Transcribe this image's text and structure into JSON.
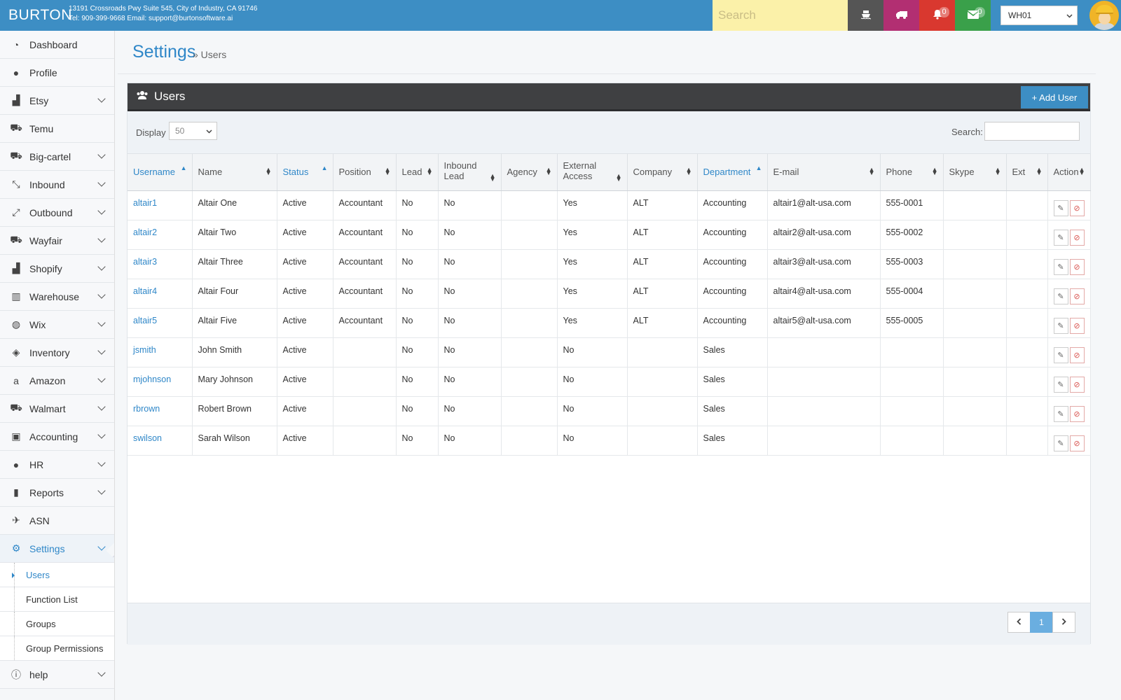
{
  "header": {
    "brand": "BURTON",
    "address_line1": "13191 Crossroads Pwy Suite 545, City of Industry, CA 91746",
    "address_line2": "Tel: 909-399-9668 Email: support@burtonsoftware.ai",
    "search_placeholder": "Search",
    "notifications_count": "0",
    "messages_count": "0",
    "warehouse": "WH01",
    "colors": {
      "bar": "#3d8ec4",
      "search": "#fbf1a9",
      "ship": "#555555",
      "truck": "#b22f72",
      "bell": "#d9382f",
      "mail": "#3aa04a"
    }
  },
  "sidebar": {
    "items": [
      {
        "label": "Dashboard",
        "icon": "dashboard-icon"
      },
      {
        "label": "Profile",
        "icon": "user-icon"
      },
      {
        "label": "Etsy",
        "icon": "shopping-bag-icon"
      },
      {
        "label": "Temu",
        "icon": "cart-icon"
      },
      {
        "label": "Big-cartel",
        "icon": "cart-icon"
      },
      {
        "label": "Inbound",
        "icon": "compress-icon"
      },
      {
        "label": "Outbound",
        "icon": "expand-icon"
      },
      {
        "label": "Wayfair",
        "icon": "cart-icon"
      },
      {
        "label": "Shopify",
        "icon": "shopping-bag-icon"
      },
      {
        "label": "Warehouse",
        "icon": "barcode-icon"
      },
      {
        "label": "Wix",
        "icon": "globe-icon"
      },
      {
        "label": "Inventory",
        "icon": "cube-icon"
      },
      {
        "label": "Amazon",
        "icon": "amazon-icon"
      },
      {
        "label": "Walmart",
        "icon": "cart-icon"
      },
      {
        "label": "Accounting",
        "icon": "briefcase-icon"
      },
      {
        "label": "HR",
        "icon": "user-icon"
      },
      {
        "label": "Reports",
        "icon": "file-icon"
      },
      {
        "label": "ASN",
        "icon": "plane-icon"
      },
      {
        "label": "Settings",
        "icon": "gear-icon"
      }
    ],
    "settings_sub": [
      "Users",
      "Function List",
      "Groups",
      "Group Permissions"
    ],
    "help": "help"
  },
  "page": {
    "title": "Settings",
    "breadcrumb": "» Users"
  },
  "panel": {
    "title": "Users",
    "add_button": "+ Add User",
    "display_label": "Display",
    "display_value": "50",
    "search_label": "Search:"
  },
  "table": {
    "columns": [
      "Username",
      "Name",
      "Status",
      "Position",
      "Lead",
      "Inbound Lead",
      "Agency",
      "External Access",
      "Company",
      "Department",
      "E-mail",
      "Phone",
      "Skype",
      "Ext",
      "Action"
    ],
    "rows": [
      [
        "altair1",
        "Altair One",
        "Active",
        "Accountant",
        "No",
        "No",
        "",
        "Yes",
        "ALT",
        "Accounting",
        "altair1@alt-usa.com",
        "555-0001",
        "",
        ""
      ],
      [
        "altair2",
        "Altair Two",
        "Active",
        "Accountant",
        "No",
        "No",
        "",
        "Yes",
        "ALT",
        "Accounting",
        "altair2@alt-usa.com",
        "555-0002",
        "",
        ""
      ],
      [
        "altair3",
        "Altair Three",
        "Active",
        "Accountant",
        "No",
        "No",
        "",
        "Yes",
        "ALT",
        "Accounting",
        "altair3@alt-usa.com",
        "555-0003",
        "",
        ""
      ],
      [
        "altair4",
        "Altair Four",
        "Active",
        "Accountant",
        "No",
        "No",
        "",
        "Yes",
        "ALT",
        "Accounting",
        "altair4@alt-usa.com",
        "555-0004",
        "",
        ""
      ],
      [
        "altair5",
        "Altair Five",
        "Active",
        "Accountant",
        "No",
        "No",
        "",
        "Yes",
        "ALT",
        "Accounting",
        "altair5@alt-usa.com",
        "555-0005",
        "",
        ""
      ],
      [
        "jsmith",
        "John Smith",
        "Active",
        "",
        "No",
        "No",
        "",
        "No",
        "",
        "Sales",
        "",
        "",
        "",
        ""
      ],
      [
        "mjohnson",
        "Mary Johnson",
        "Active",
        "",
        "No",
        "No",
        "",
        "No",
        "",
        "Sales",
        "",
        "",
        "",
        ""
      ],
      [
        "rbrown",
        "Robert Brown",
        "Active",
        "",
        "No",
        "No",
        "",
        "No",
        "",
        "Sales",
        "",
        "",
        "",
        ""
      ],
      [
        "swilson",
        "Sarah Wilson",
        "Active",
        "",
        "No",
        "No",
        "",
        "No",
        "",
        "Sales",
        "",
        "",
        "",
        ""
      ]
    ]
  },
  "pagination": {
    "current": "1"
  }
}
